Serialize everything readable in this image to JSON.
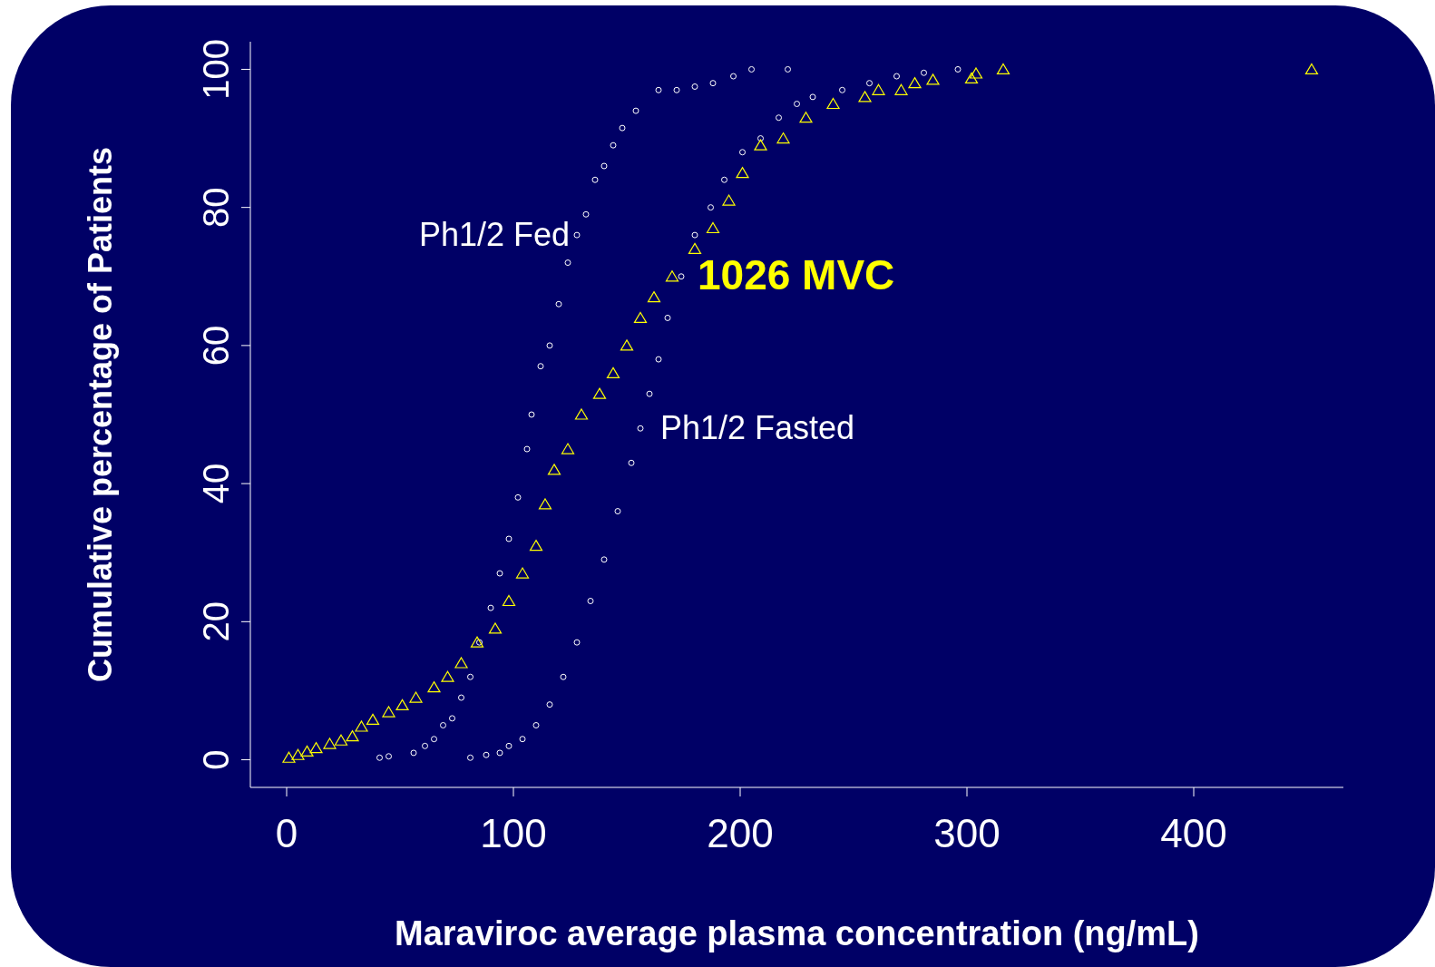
{
  "chart_data": {
    "type": "scatter",
    "xlabel": "Maraviroc average plasma concentration (ng/mL)",
    "ylabel": "Cumulative percentage of Patients",
    "xlim": [
      -16,
      466
    ],
    "ylim": [
      -4,
      104
    ],
    "xticks": [
      0,
      100,
      200,
      300,
      400
    ],
    "yticks": [
      0,
      20,
      40,
      60,
      80,
      100
    ],
    "series": [
      {
        "name": "Ph1/2 Fed",
        "color": "#ffffff",
        "marker": "circle",
        "x": [
          41,
          45,
          56,
          61,
          65,
          69,
          73,
          77,
          81,
          85,
          90,
          94,
          98,
          102,
          106,
          108,
          112,
          116,
          120,
          124,
          128,
          132,
          136,
          140,
          144,
          148,
          154,
          164,
          172,
          180,
          188,
          197,
          205,
          221
        ],
        "values": [
          0.3,
          0.5,
          1,
          2,
          3,
          5,
          6,
          9,
          12,
          17,
          22,
          27,
          32,
          38,
          45,
          50,
          57,
          60,
          66,
          72,
          76,
          79,
          84,
          86,
          89,
          91.5,
          94,
          97,
          97,
          97.5,
          98,
          99,
          100,
          100
        ]
      },
      {
        "name": "Ph1/2 Fasted",
        "color": "#ffffff",
        "marker": "circle",
        "x": [
          81,
          88,
          94,
          98,
          104,
          110,
          116,
          122,
          128,
          134,
          140,
          146,
          152,
          156,
          160,
          164,
          168,
          174,
          180,
          187,
          193,
          201,
          209,
          217,
          225,
          232,
          245,
          257,
          269,
          281,
          296
        ],
        "values": [
          0.3,
          0.7,
          1,
          2,
          3,
          5,
          8,
          12,
          17,
          23,
          29,
          36,
          43,
          48,
          53,
          58,
          64,
          70,
          76,
          80,
          84,
          88,
          90,
          93,
          95,
          96,
          97,
          98,
          99,
          99.5,
          100
        ]
      },
      {
        "name": "1026 MVC",
        "color": "#ffff00",
        "marker": "triangle",
        "x": [
          1,
          5,
          9,
          13,
          19,
          24,
          29,
          33,
          38,
          45,
          51,
          57,
          65,
          71,
          77,
          84,
          92,
          98,
          104,
          110,
          114,
          118,
          124,
          130,
          138,
          144,
          150,
          156,
          162,
          170,
          180,
          188,
          195,
          201,
          209,
          219,
          229,
          241,
          255,
          261,
          271,
          277,
          285,
          302,
          304,
          316,
          452
        ],
        "values": [
          0.3,
          0.7,
          1.2,
          1.7,
          2.3,
          2.8,
          3.4,
          4.8,
          5.8,
          6.9,
          7.9,
          9,
          10.5,
          12,
          14,
          17,
          19,
          23,
          27,
          31,
          37,
          42,
          45,
          50,
          53,
          56,
          60,
          64,
          67,
          70,
          74,
          77,
          81,
          85,
          89,
          90,
          93,
          95,
          96,
          97,
          97,
          98,
          98.5,
          98.7,
          99.4,
          100,
          100
        ]
      }
    ]
  }
}
